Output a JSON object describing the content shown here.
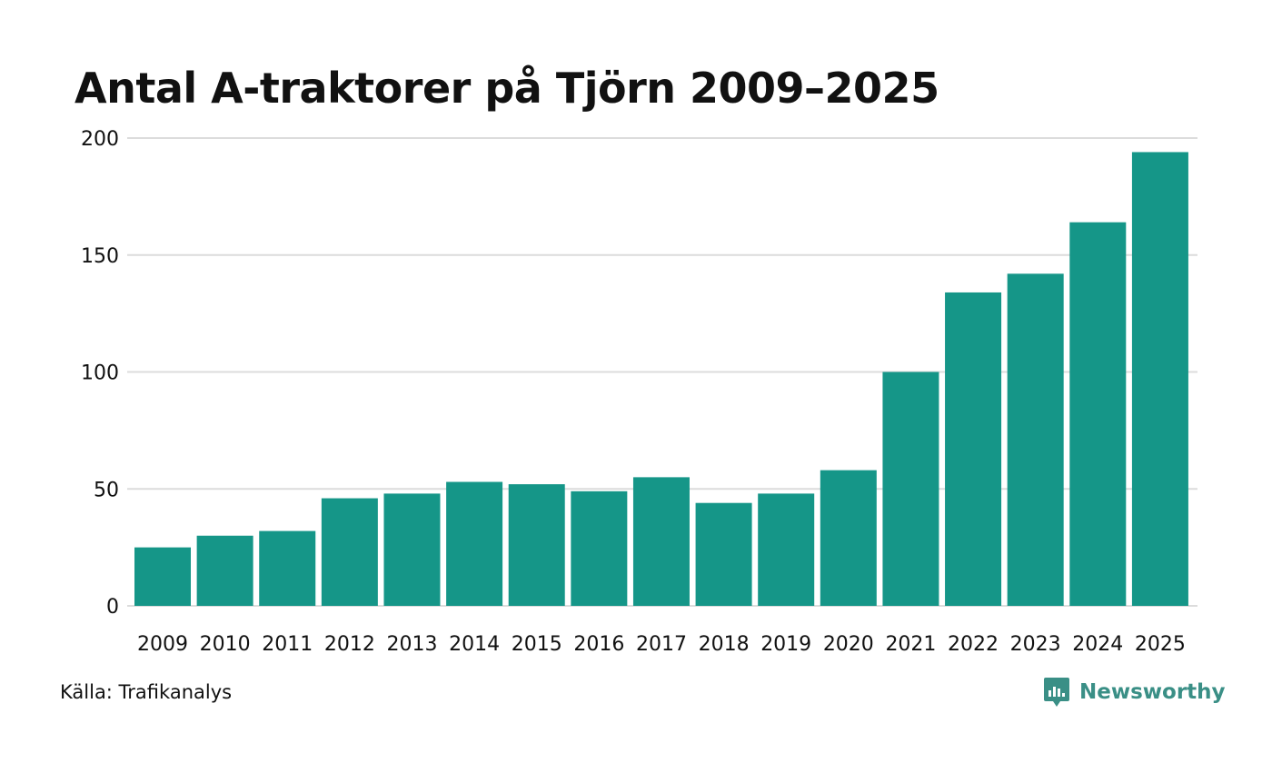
{
  "title": "Antal A-traktorer på Tjörn 2009–2025",
  "source": "Källa: Trafikanalys",
  "brand": {
    "name": "Newsworthy",
    "icon": "newsworthy-logo-icon",
    "color": "#3a8f86"
  },
  "colors": {
    "bar": "#159688",
    "grid": "#dcdcdc",
    "text": "#111111"
  },
  "chart_data": {
    "type": "bar",
    "title": "Antal A-traktorer på Tjörn 2009–2025",
    "xlabel": "",
    "ylabel": "",
    "categories": [
      "2009",
      "2010",
      "2011",
      "2012",
      "2013",
      "2014",
      "2015",
      "2016",
      "2017",
      "2018",
      "2019",
      "2020",
      "2021",
      "2022",
      "2023",
      "2024",
      "2025"
    ],
    "values": [
      25,
      30,
      32,
      46,
      48,
      53,
      52,
      49,
      55,
      44,
      48,
      58,
      100,
      134,
      142,
      164,
      194
    ],
    "ylim": [
      0,
      200
    ],
    "yticks": [
      0,
      50,
      100,
      150,
      200
    ],
    "grid": true
  }
}
